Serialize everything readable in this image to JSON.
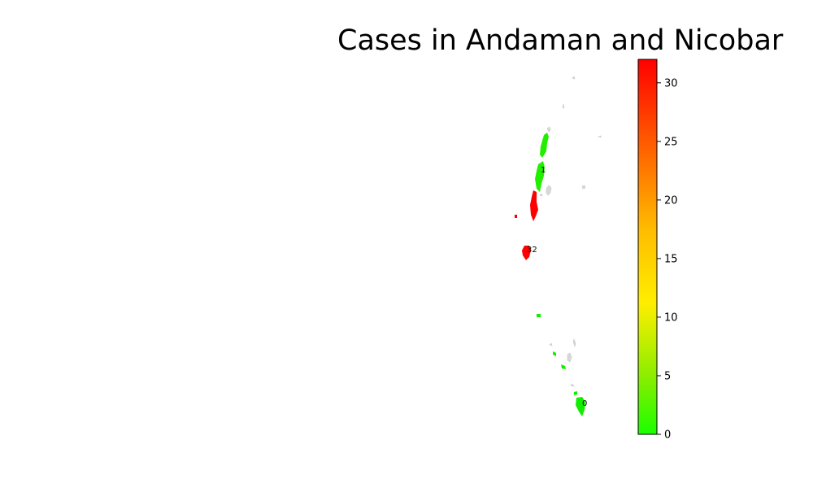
{
  "title": "Cases in Andaman and Nicobar",
  "chart_data": {
    "type": "choropleth",
    "title": "Cases in Andaman and Nicobar",
    "regions": [
      {
        "name": "",
        "value": 1,
        "label": "1",
        "color": "#22ee00"
      },
      {
        "name": "",
        "value": 32,
        "label": "32",
        "color": "#ff0000"
      },
      {
        "name": "",
        "value": 0,
        "label": "0",
        "color": "#11ee00"
      }
    ],
    "colorbar": {
      "min": 0,
      "max": 32,
      "ticks": [
        "0",
        "5",
        "10",
        "15",
        "20",
        "25",
        "30"
      ],
      "tick_values": [
        0,
        5,
        10,
        15,
        20,
        25,
        30
      ],
      "colors": [
        "#1aff00",
        "#ffdd00",
        "#ff8800",
        "#ff0000"
      ]
    }
  }
}
